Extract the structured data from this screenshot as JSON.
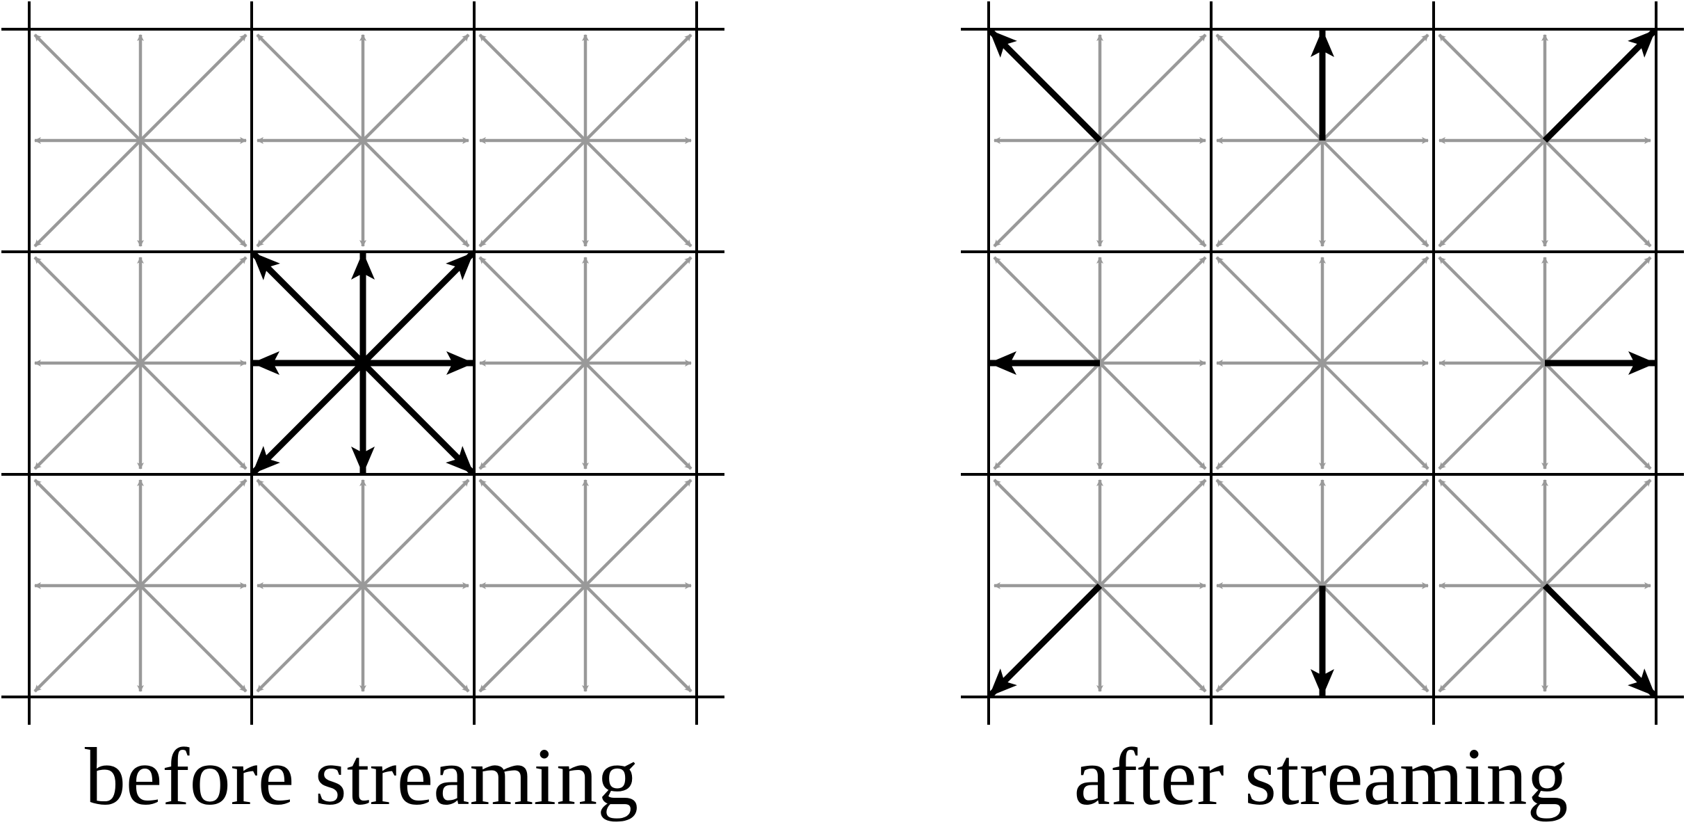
{
  "panels": [
    {
      "caption": "before streaming",
      "highlight_mode": "center_cell_all_directions"
    },
    {
      "caption": "after streaming",
      "highlight_mode": "streamed_to_neighbors"
    }
  ],
  "grid": {
    "rows": 3,
    "cols": 3
  },
  "directions": [
    "east",
    "north-east",
    "north",
    "north-west",
    "west",
    "south-west",
    "south",
    "south-east"
  ],
  "colors": {
    "grid_line": "#000000",
    "inactive_arrow": "#999999",
    "active_arrow": "#000000",
    "background": "#ffffff"
  }
}
